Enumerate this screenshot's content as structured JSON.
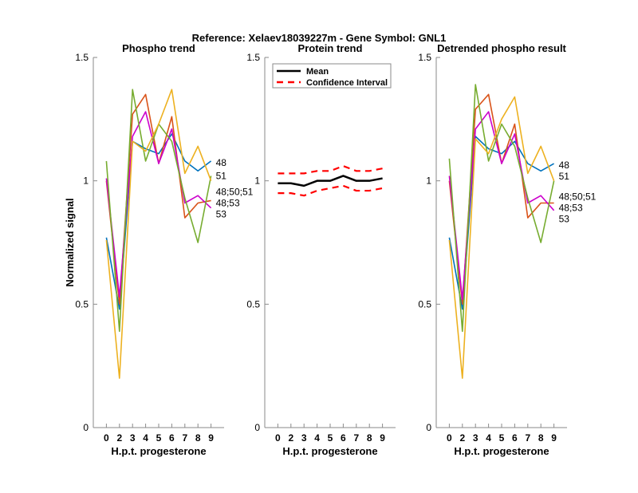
{
  "colors": {
    "blue": "#0072BD",
    "red": "#D95319",
    "yellow": "#EDB120",
    "magenta": "#CC00CC",
    "green": "#77AC30",
    "mean": "#000000",
    "ci": "#FF0000"
  },
  "chart_data": [
    {
      "type": "line",
      "figure_title": "Reference:  Xelaev18039227m - Gene Symbol:  GNL1",
      "title": "Phospho trend",
      "xlabel": "H.p.t. progesterone",
      "ylabel": "Normalized signal",
      "categories": [
        "0",
        "2",
        "3",
        "4",
        "5",
        "6",
        "7",
        "8",
        "9"
      ],
      "ylim": [
        0,
        1.5
      ],
      "yticks": [
        "0",
        "0.5",
        "1",
        "1.5"
      ],
      "grid": false,
      "series": [
        {
          "name": "48",
          "color": "blue",
          "values": [
            0.77,
            0.48,
            1.16,
            1.13,
            1.11,
            1.19,
            1.08,
            1.04,
            1.08
          ]
        },
        {
          "name": "48;53",
          "color": "red",
          "values": [
            1.0,
            0.5,
            1.27,
            1.35,
            1.07,
            1.26,
            0.85,
            0.91,
            0.92
          ]
        },
        {
          "name": "53",
          "color": "magenta",
          "values": [
            1.01,
            0.53,
            1.18,
            1.28,
            1.07,
            1.21,
            0.91,
            0.94,
            0.89
          ]
        },
        {
          "name": "48;50;51",
          "color": "green",
          "values": [
            1.08,
            0.39,
            1.37,
            1.08,
            1.23,
            1.16,
            0.93,
            0.75,
            1.02
          ]
        },
        {
          "name": "51",
          "color": "yellow",
          "values": [
            0.76,
            0.2,
            1.16,
            1.12,
            1.23,
            1.37,
            1.03,
            1.14,
            1.0
          ]
        }
      ]
    },
    {
      "type": "line",
      "title": "Protein trend",
      "xlabel": "H.p.t. progesterone",
      "categories": [
        "0",
        "2",
        "3",
        "4",
        "5",
        "6",
        "7",
        "8",
        "9"
      ],
      "ylim": [
        0,
        1.5
      ],
      "yticks": [
        "0",
        "0.5",
        "1",
        "1.5"
      ],
      "grid": false,
      "legend_position": "top-left",
      "series": [
        {
          "name": "Mean",
          "color": "mean",
          "style": "solid",
          "values": [
            0.99,
            0.99,
            0.98,
            1.0,
            1.0,
            1.02,
            1.0,
            1.0,
            1.01
          ]
        },
        {
          "name": "Confidence Interval",
          "color": "ci",
          "style": "dashed",
          "values": [
            1.03,
            1.03,
            1.03,
            1.04,
            1.04,
            1.06,
            1.04,
            1.04,
            1.05
          ]
        },
        {
          "color": "ci",
          "style": "dashed",
          "values": [
            0.95,
            0.95,
            0.94,
            0.96,
            0.97,
            0.98,
            0.96,
            0.96,
            0.97
          ]
        }
      ]
    },
    {
      "type": "line",
      "title": "Detrended phospho result",
      "xlabel": "H.p.t. progesterone",
      "categories": [
        "0",
        "2",
        "3",
        "4",
        "5",
        "6",
        "7",
        "8",
        "9"
      ],
      "ylim": [
        0,
        1.5
      ],
      "yticks": [
        "0",
        "0.5",
        "1",
        "1.5"
      ],
      "grid": false,
      "series": [
        {
          "name": "48",
          "color": "blue",
          "values": [
            0.77,
            0.48,
            1.18,
            1.13,
            1.11,
            1.16,
            1.07,
            1.04,
            1.07
          ]
        },
        {
          "name": "48;53",
          "color": "red",
          "values": [
            1.0,
            0.5,
            1.29,
            1.35,
            1.07,
            1.23,
            0.85,
            0.91,
            0.91
          ]
        },
        {
          "name": "53",
          "color": "magenta",
          "values": [
            1.02,
            0.52,
            1.21,
            1.28,
            1.07,
            1.19,
            0.91,
            0.94,
            0.88
          ]
        },
        {
          "name": "48;50;51",
          "color": "green",
          "values": [
            1.09,
            0.39,
            1.39,
            1.08,
            1.23,
            1.14,
            0.93,
            0.75,
            1.0
          ]
        },
        {
          "name": "51",
          "color": "yellow",
          "values": [
            0.76,
            0.2,
            1.17,
            1.11,
            1.25,
            1.34,
            1.03,
            1.14,
            1.0
          ]
        }
      ]
    }
  ]
}
